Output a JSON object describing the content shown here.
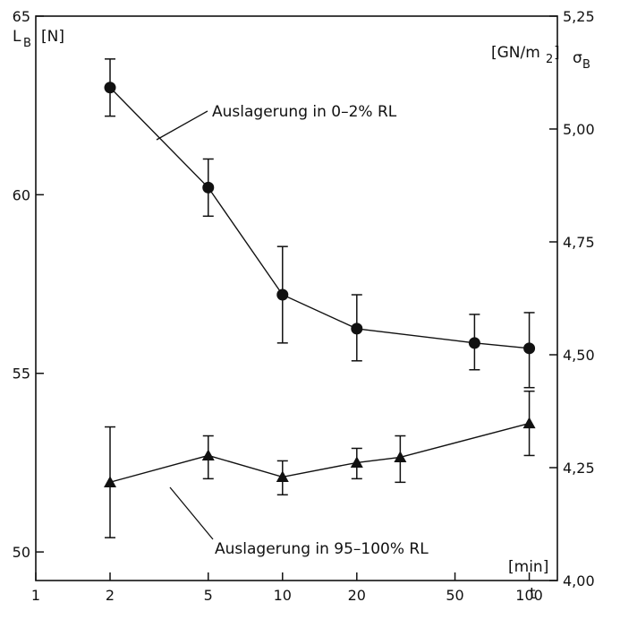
{
  "chart_data": {
    "type": "line",
    "x_scale": "log",
    "x_tick_labels": [
      "1",
      "2",
      "5",
      "10",
      "20",
      "50",
      "100"
    ],
    "x_ticks": [
      1,
      2,
      5,
      10,
      20,
      50,
      100
    ],
    "xlim": [
      1,
      130
    ],
    "xlabel": "t",
    "xunit": "[min]",
    "ylabel_left_main": "L",
    "ylabel_left_sub": "B",
    "ylabel_left_unit": "[N]",
    "ylim": [
      49.2,
      65
    ],
    "y_ticks": [
      50,
      55,
      60,
      65
    ],
    "y_tick_labels": [
      "50",
      "55",
      "60",
      "65"
    ],
    "y2_label_unit": "[GN/m",
    "y2_label_unit_sub": "2",
    "y2_label_unit_close": "]",
    "y2_label_main": "σ",
    "y2_label_sub": "B",
    "y2_ticks": [
      4.0,
      4.25,
      4.5,
      4.75,
      5.0,
      5.25
    ],
    "y2_tick_labels": [
      "4,00",
      "4,25",
      "4,50",
      "4,75",
      "5,00",
      "5,25"
    ],
    "y2lim": [
      4.0,
      5.25
    ],
    "series": [
      {
        "marker": "circle",
        "label_text": "Auslagerung in 0–2% RL",
        "x": [
          2,
          5,
          10,
          20,
          60,
          100
        ],
        "y": [
          63.0,
          60.2,
          57.2,
          56.25,
          55.85,
          55.7
        ],
        "err_low": [
          62.2,
          59.4,
          55.85,
          55.35,
          55.1,
          54.6
        ],
        "err_high": [
          63.8,
          61.0,
          58.55,
          57.2,
          56.65,
          56.7
        ]
      },
      {
        "marker": "triangle",
        "label_text": "Auslagerung in 95–100% RL",
        "x": [
          2,
          5,
          10,
          20,
          30,
          100
        ],
        "y": [
          51.95,
          52.7,
          52.1,
          52.5,
          52.65,
          53.6
        ],
        "err_low": [
          50.4,
          52.05,
          51.6,
          52.05,
          51.95,
          52.7
        ],
        "err_high": [
          53.5,
          53.25,
          52.55,
          52.9,
          53.25,
          54.5
        ]
      }
    ]
  }
}
